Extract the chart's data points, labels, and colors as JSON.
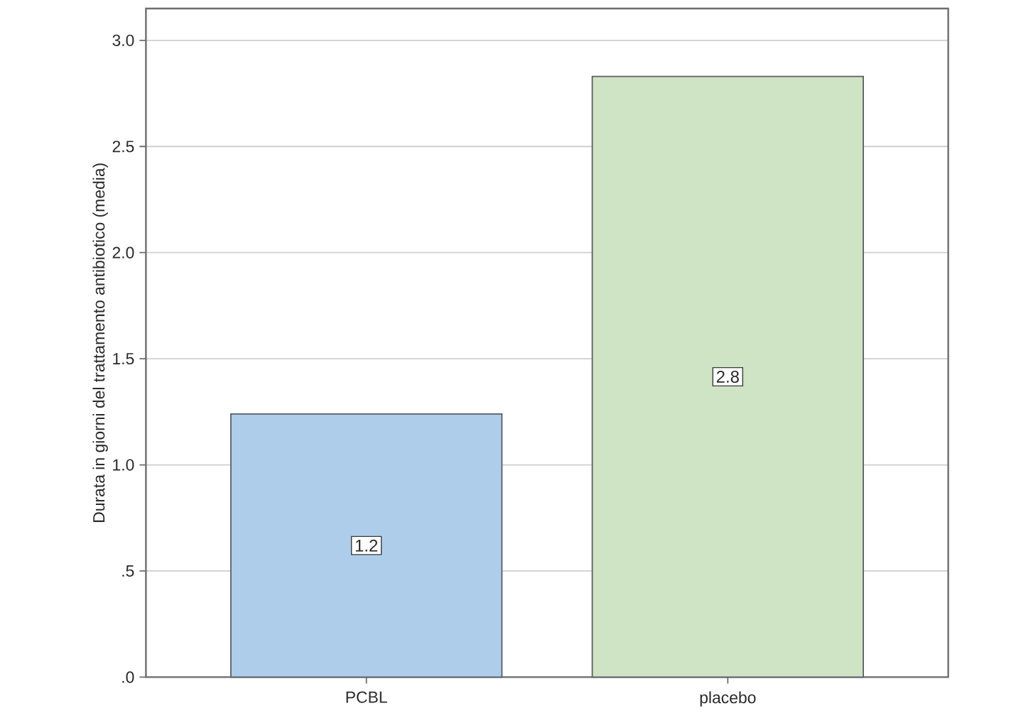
{
  "chart_data": {
    "type": "bar",
    "ylabel": "Durata in giorni del trattamento antibiotico (media)",
    "categories": [
      "PCBL",
      "placebo"
    ],
    "values": [
      1.24,
      2.83
    ],
    "colors": [
      "#aecdeb",
      "#cfe3c5"
    ],
    "value_labels": [
      "1.2",
      "2.8"
    ],
    "ylim": [
      0,
      3.15
    ],
    "yticks": [
      {
        "value": 0,
        "label": ".0"
      },
      {
        "value": 0.5,
        "label": ".5"
      },
      {
        "value": 1,
        "label": "1.0"
      },
      {
        "value": 1.5,
        "label": "1.5"
      },
      {
        "value": 2,
        "label": "2.0"
      },
      {
        "value": 2.5,
        "label": "2.5"
      },
      {
        "value": 3,
        "label": "3.0"
      }
    ],
    "grid": "y"
  }
}
